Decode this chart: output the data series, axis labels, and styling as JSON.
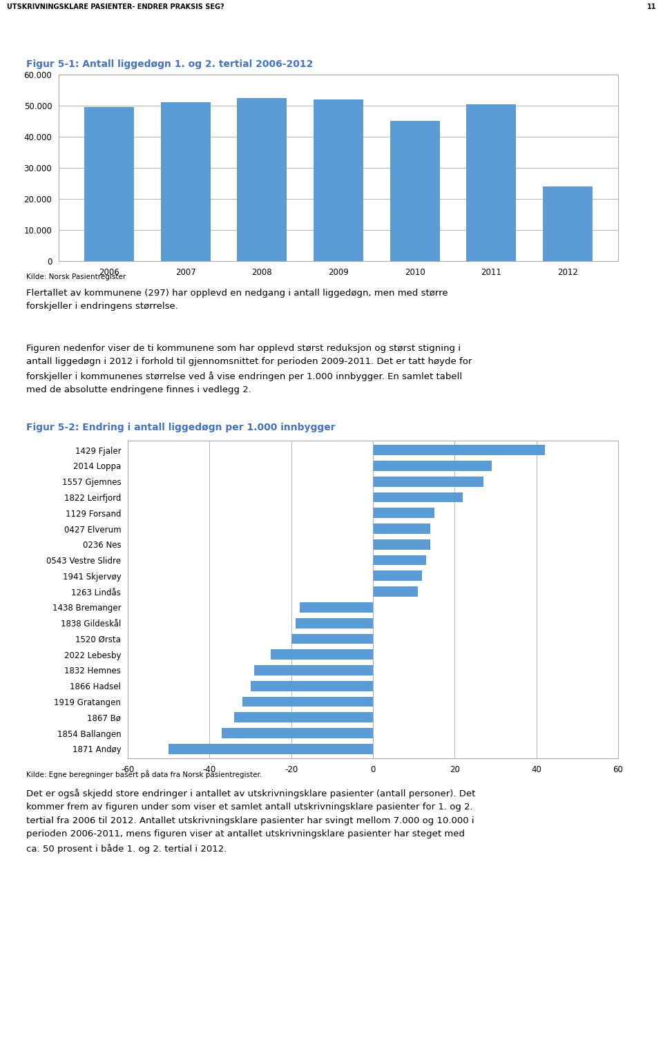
{
  "fig1_title": "Figur 5-1: Antall liggedøgn 1. og 2. tertial 2006-2012",
  "fig1_years": [
    2006,
    2007,
    2008,
    2009,
    2010,
    2011,
    2012
  ],
  "fig1_values": [
    49500,
    51000,
    52500,
    52000,
    45000,
    50500,
    24000
  ],
  "fig1_bar_color": "#5B9BD5",
  "fig1_ylim": [
    0,
    60000
  ],
  "fig1_yticks": [
    0,
    10000,
    20000,
    30000,
    40000,
    50000,
    60000
  ],
  "fig1_ytick_labels": [
    "0",
    "10.000",
    "20.000",
    "30.000",
    "40.000",
    "50.000",
    "60.000"
  ],
  "fig1_source": "Kilde: Norsk Pasientregister",
  "fig2_title": "Figur 5-2: Endring i antall liggedøgn per 1.000 innbygger",
  "fig2_municipalities": [
    "1429 Fjaler",
    "2014 Loppa",
    "1557 Gjemnes",
    "1822 Leirfjord",
    "1129 Forsand",
    "0427 Elverum",
    "0236 Nes",
    "0543 Vestre Slidre",
    "1941 Skjervøy",
    "1263 Lindås",
    "1438 Bremanger",
    "1838 Gildeskål",
    "1520 Ørsta",
    "2022 Lebesby",
    "1832 Hemnes",
    "1866 Hadsel",
    "1919 Gratangen",
    "1867 Bø",
    "1854 Ballangen",
    "1871 Andøy"
  ],
  "fig2_values": [
    42,
    29,
    27,
    22,
    15,
    14,
    14,
    13,
    12,
    11,
    -18,
    -19,
    -20,
    -25,
    -29,
    -30,
    -32,
    -34,
    -37,
    -50
  ],
  "fig2_bar_color": "#5B9BD5",
  "fig2_xlim": [
    -60,
    60
  ],
  "fig2_xticks": [
    -60,
    -40,
    -20,
    0,
    20,
    40,
    60
  ],
  "fig2_source": "Kilde: Egne beregninger basert på data fra Norsk pasientregister.",
  "header_text": "UTSKRIVNINGSKLARE PASIENTER- ENDRER PRAKSIS SEG?",
  "header_page": "11",
  "body_text1": "Flertallet av kommunene (297) har opplevd en nedgang i antall liggedøgn, men med større\nforskjeller i endringens størrelse.",
  "body_text2": "Figuren nedenfor viser de ti kommunene som har opplevd størst reduksjon og størst stigning i\nantall liggedøgn i 2012 i forhold til gjennomsnittet for perioden 2009-2011. Det er tatt høyde for\nforskjeller i kommunenes størrelse ved å vise endringen per 1.000 innbygger. En samlet tabell\nmed de absolutte endringene finnes i vedlegg 2.",
  "body_text3": "Det er også skjedd store endringer i antallet av utskrivningsklare pasienter (antall personer). Det\nkommer frem av figuren under som viser et samlet antall utskrivningsklare pasienter for 1. og 2.\ntertial fra 2006 til 2012. Antallet utskrivningsklare pasienter har svingt mellom 7.000 og 10.000 i\nperioden 2006-2011, mens figuren viser at antallet utskrivningsklare pasienter har steget med\nca. 50 prosent i både 1. og 2. tertial i 2012.",
  "title_color": "#4472C4",
  "grid_color": "#AAAAAA",
  "spine_color": "#AAAAAA",
  "figure_bg": "#FFFFFF"
}
